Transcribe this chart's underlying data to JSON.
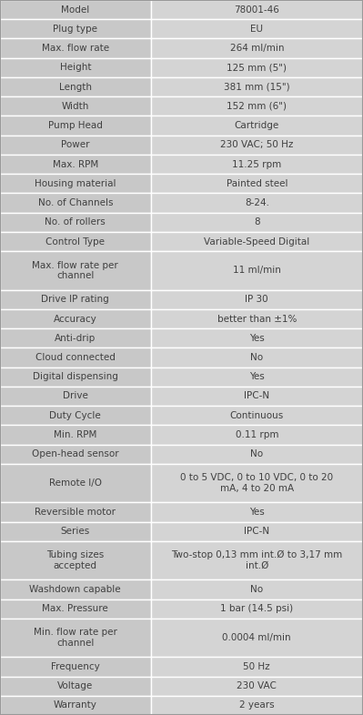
{
  "rows": [
    [
      "Model",
      "78001-46"
    ],
    [
      "Plug type",
      "EU"
    ],
    [
      "Max. flow rate",
      "264 ml/min"
    ],
    [
      "Height",
      "125 mm (5\")"
    ],
    [
      "Length",
      "381 mm (15\")"
    ],
    [
      "Width",
      "152 mm (6\")"
    ],
    [
      "Pump Head",
      "Cartridge"
    ],
    [
      "Power",
      "230 VAC; 50 Hz"
    ],
    [
      "Max. RPM",
      "11.25 rpm"
    ],
    [
      "Housing material",
      "Painted steel"
    ],
    [
      "No. of Channels",
      "8-24."
    ],
    [
      "No. of rollers",
      "8"
    ],
    [
      "Control Type",
      "Variable-Speed Digital"
    ],
    [
      "Max. flow rate per\nchannel",
      "11 ml/min"
    ],
    [
      "Drive IP rating",
      "IP 30"
    ],
    [
      "Accuracy",
      "better than ±1%"
    ],
    [
      "Anti-drip",
      "Yes"
    ],
    [
      "Cloud connected",
      "No"
    ],
    [
      "Digital dispensing",
      "Yes"
    ],
    [
      "Drive",
      "IPC-N"
    ],
    [
      "Duty Cycle",
      "Continuous"
    ],
    [
      "Min. RPM",
      "0.11 rpm"
    ],
    [
      "Open-head sensor",
      "No"
    ],
    [
      "Remote I/O",
      "0 to 5 VDC, 0 to 10 VDC, 0 to 20\nmA, 4 to 20 mA"
    ],
    [
      "Reversible motor",
      "Yes"
    ],
    [
      "Series",
      "IPC-N"
    ],
    [
      "Tubing sizes\naccepted",
      "Two-stop 0,13 mm int.Ø to 3,17 mm\nint.Ø"
    ],
    [
      "Washdown capable",
      "No"
    ],
    [
      "Max. Pressure",
      "1 bar (14.5 psi)"
    ],
    [
      "Min. flow rate per\nchannel",
      "0.0004 ml/min"
    ],
    [
      "Frequency",
      "50 Hz"
    ],
    [
      "Voltage",
      "230 VAC"
    ],
    [
      "Warranty",
      "2 years"
    ]
  ],
  "col_split": 0.415,
  "left_color": "#c8c8c8",
  "right_color": "#d4d4d4",
  "text_color": "#404040",
  "border_color": "#ffffff",
  "font_size": 7.5,
  "fig_width": 3.99,
  "fig_height": 7.86,
  "dpi": 100
}
